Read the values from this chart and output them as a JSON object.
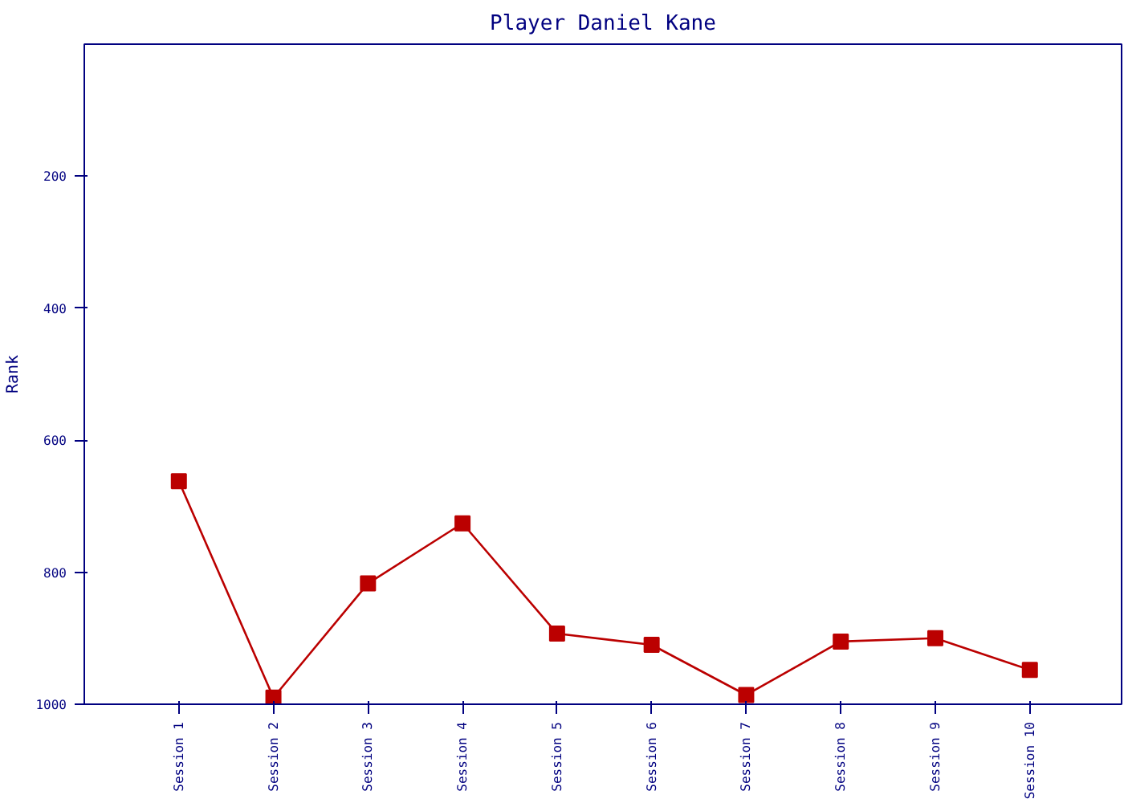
{
  "chart_data": {
    "type": "line",
    "title": "Player Daniel Kane",
    "ylabel": "Rank",
    "categories": [
      "Session 1",
      "Session 2",
      "Session 3",
      "Session 4",
      "Session 5",
      "Session 6",
      "Session 7",
      "Session 8",
      "Session 9",
      "Session 10"
    ],
    "series": [
      {
        "color": "#bb0000",
        "values": [
          662,
          990,
          817,
          726,
          893,
          910,
          986,
          905,
          900,
          948
        ]
      }
    ],
    "ylim": [
      1000,
      0
    ],
    "yticks": [
      200,
      400,
      600,
      800,
      1000
    ],
    "grid": false,
    "marker": "square",
    "line_style": "solid"
  }
}
